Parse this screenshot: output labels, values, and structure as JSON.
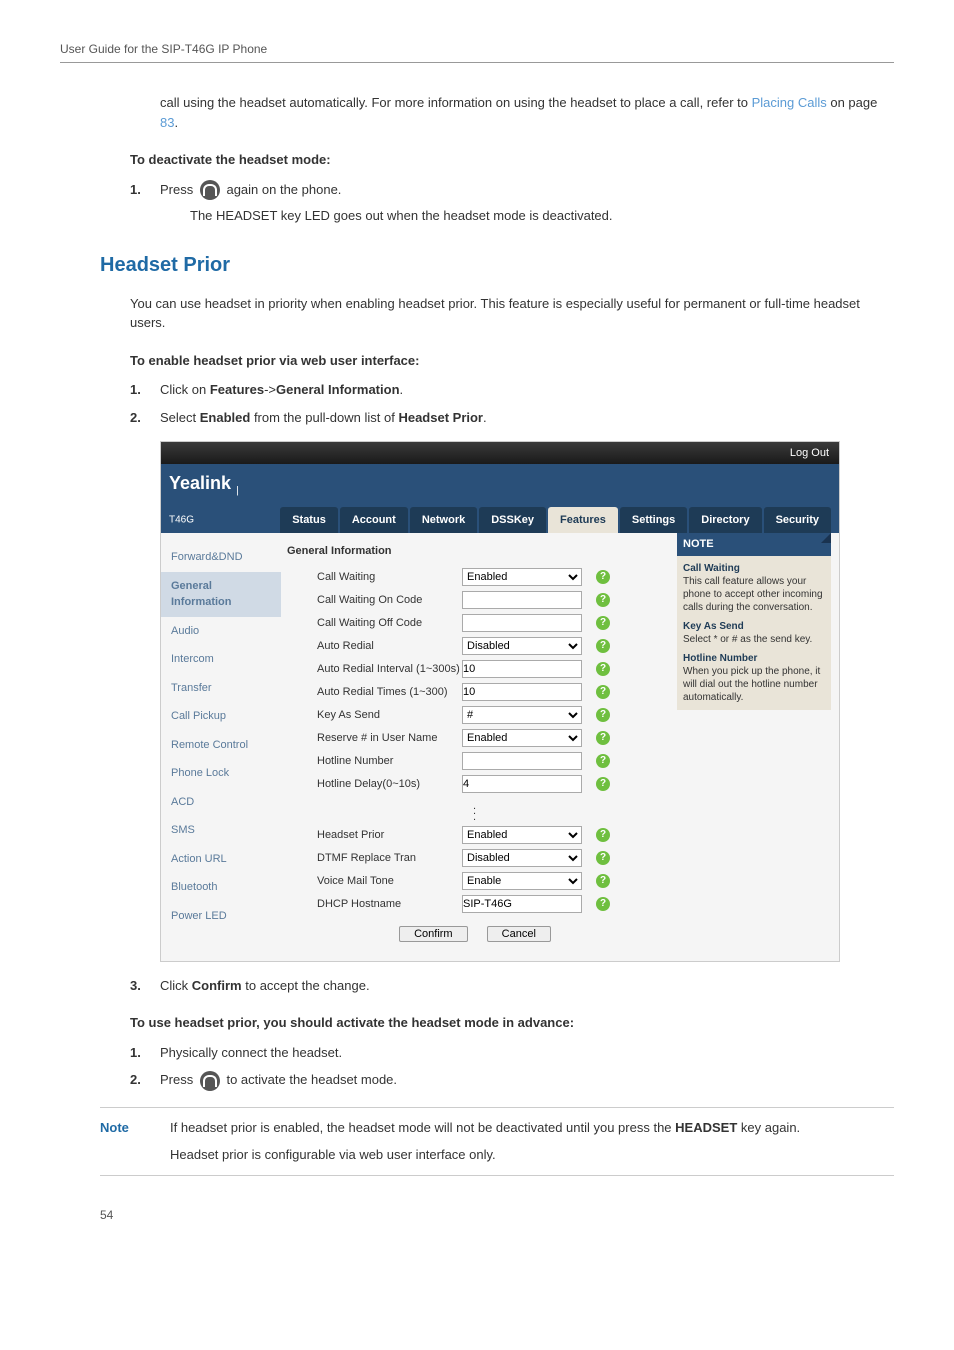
{
  "page": {
    "header": "User Guide for the SIP-T46G IP Phone",
    "page_number": "54"
  },
  "intro": {
    "cont_text": "call using the headset automatically. For more information on using the headset to place a call, refer to ",
    "link_text": "Placing Calls",
    "after_link": " on page ",
    "page_ref": "83",
    "period": "."
  },
  "deactivate": {
    "title": "To deactivate the headset mode:",
    "step1_a": "Press ",
    "step1_b": " again on the phone.",
    "result": "The HEADSET key LED goes out when the headset mode is deactivated."
  },
  "headset_prior": {
    "heading": "Headset Prior",
    "para": "You can use headset in priority when enabling headset prior. This feature is especially useful for permanent or full-time headset users.",
    "enable_title": "To enable headset prior via web user interface:",
    "step1_a": "Click on ",
    "step1_b": "Features",
    "step1_c": "->",
    "step1_d": "General Information",
    "step1_e": ".",
    "step2_a": "Select ",
    "step2_b": "Enabled",
    "step2_c": " from the pull-down list of ",
    "step2_d": "Headset Prior",
    "step2_e": "."
  },
  "screenshot": {
    "logout": "Log Out",
    "logo": "Yealink",
    "logo_sub": "T46G",
    "tabs": [
      "Status",
      "Account",
      "Network",
      "DSSKey",
      "Features",
      "Settings",
      "Directory",
      "Security"
    ],
    "active_tab_index": 4,
    "side_items": [
      "Forward&DND",
      "General Information",
      "Audio",
      "Intercom",
      "Transfer",
      "Call Pickup",
      "Remote Control",
      "Phone Lock",
      "ACD",
      "SMS",
      "Action URL",
      "Bluetooth",
      "Power LED"
    ],
    "side_selected_index": 1,
    "main_title": "General Information",
    "rows_top": [
      {
        "label": "Call Waiting",
        "type": "select",
        "value": "Enabled"
      },
      {
        "label": "Call Waiting On Code",
        "type": "text",
        "value": ""
      },
      {
        "label": "Call Waiting Off Code",
        "type": "text",
        "value": ""
      },
      {
        "label": "Auto Redial",
        "type": "select",
        "value": "Disabled"
      },
      {
        "label": "Auto Redial Interval (1~300s)",
        "type": "text",
        "value": "10"
      },
      {
        "label": "Auto Redial Times (1~300)",
        "type": "text",
        "value": "10"
      },
      {
        "label": "Key As Send",
        "type": "select",
        "value": "#"
      },
      {
        "label": "Reserve # in User Name",
        "type": "select",
        "value": "Enabled"
      },
      {
        "label": "Hotline Number",
        "type": "text",
        "value": ""
      },
      {
        "label": "Hotline Delay(0~10s)",
        "type": "text",
        "value": "4"
      }
    ],
    "rows_bottom": [
      {
        "label": "Headset Prior",
        "type": "select",
        "value": "Enabled"
      },
      {
        "label": "DTMF Replace Tran",
        "type": "select",
        "value": "Disabled"
      },
      {
        "label": "Voice Mail Tone",
        "type": "select",
        "value": "Enable"
      },
      {
        "label": "DHCP Hostname",
        "type": "text",
        "value": "SIP-T46G"
      }
    ],
    "confirm": "Confirm",
    "cancel": "Cancel",
    "note_head": "NOTE",
    "notes": [
      {
        "title": "Call Waiting",
        "body": "This call feature allows your phone to accept other incoming calls during the conversation."
      },
      {
        "title": "Key As Send",
        "body": "Select * or # as the send key."
      },
      {
        "title": "Hotline Number",
        "body": "When you pick up the phone, it will dial out the hotline number automatically."
      }
    ]
  },
  "after_shot": {
    "step3_a": "Click ",
    "step3_b": "Confirm",
    "step3_c": " to accept the change.",
    "use_title": "To use headset prior, you should activate the headset mode in advance:",
    "u1": "Physically connect the headset.",
    "u2_a": "Press ",
    "u2_b": " to activate the headset mode."
  },
  "note_box": {
    "label": "Note",
    "line1_a": "If headset prior is enabled, the headset mode will not be deactivated until you press the ",
    "line1_b": "HEADSET",
    "line1_c": " key again.",
    "line2": "Headset prior is configurable via web user interface only."
  }
}
